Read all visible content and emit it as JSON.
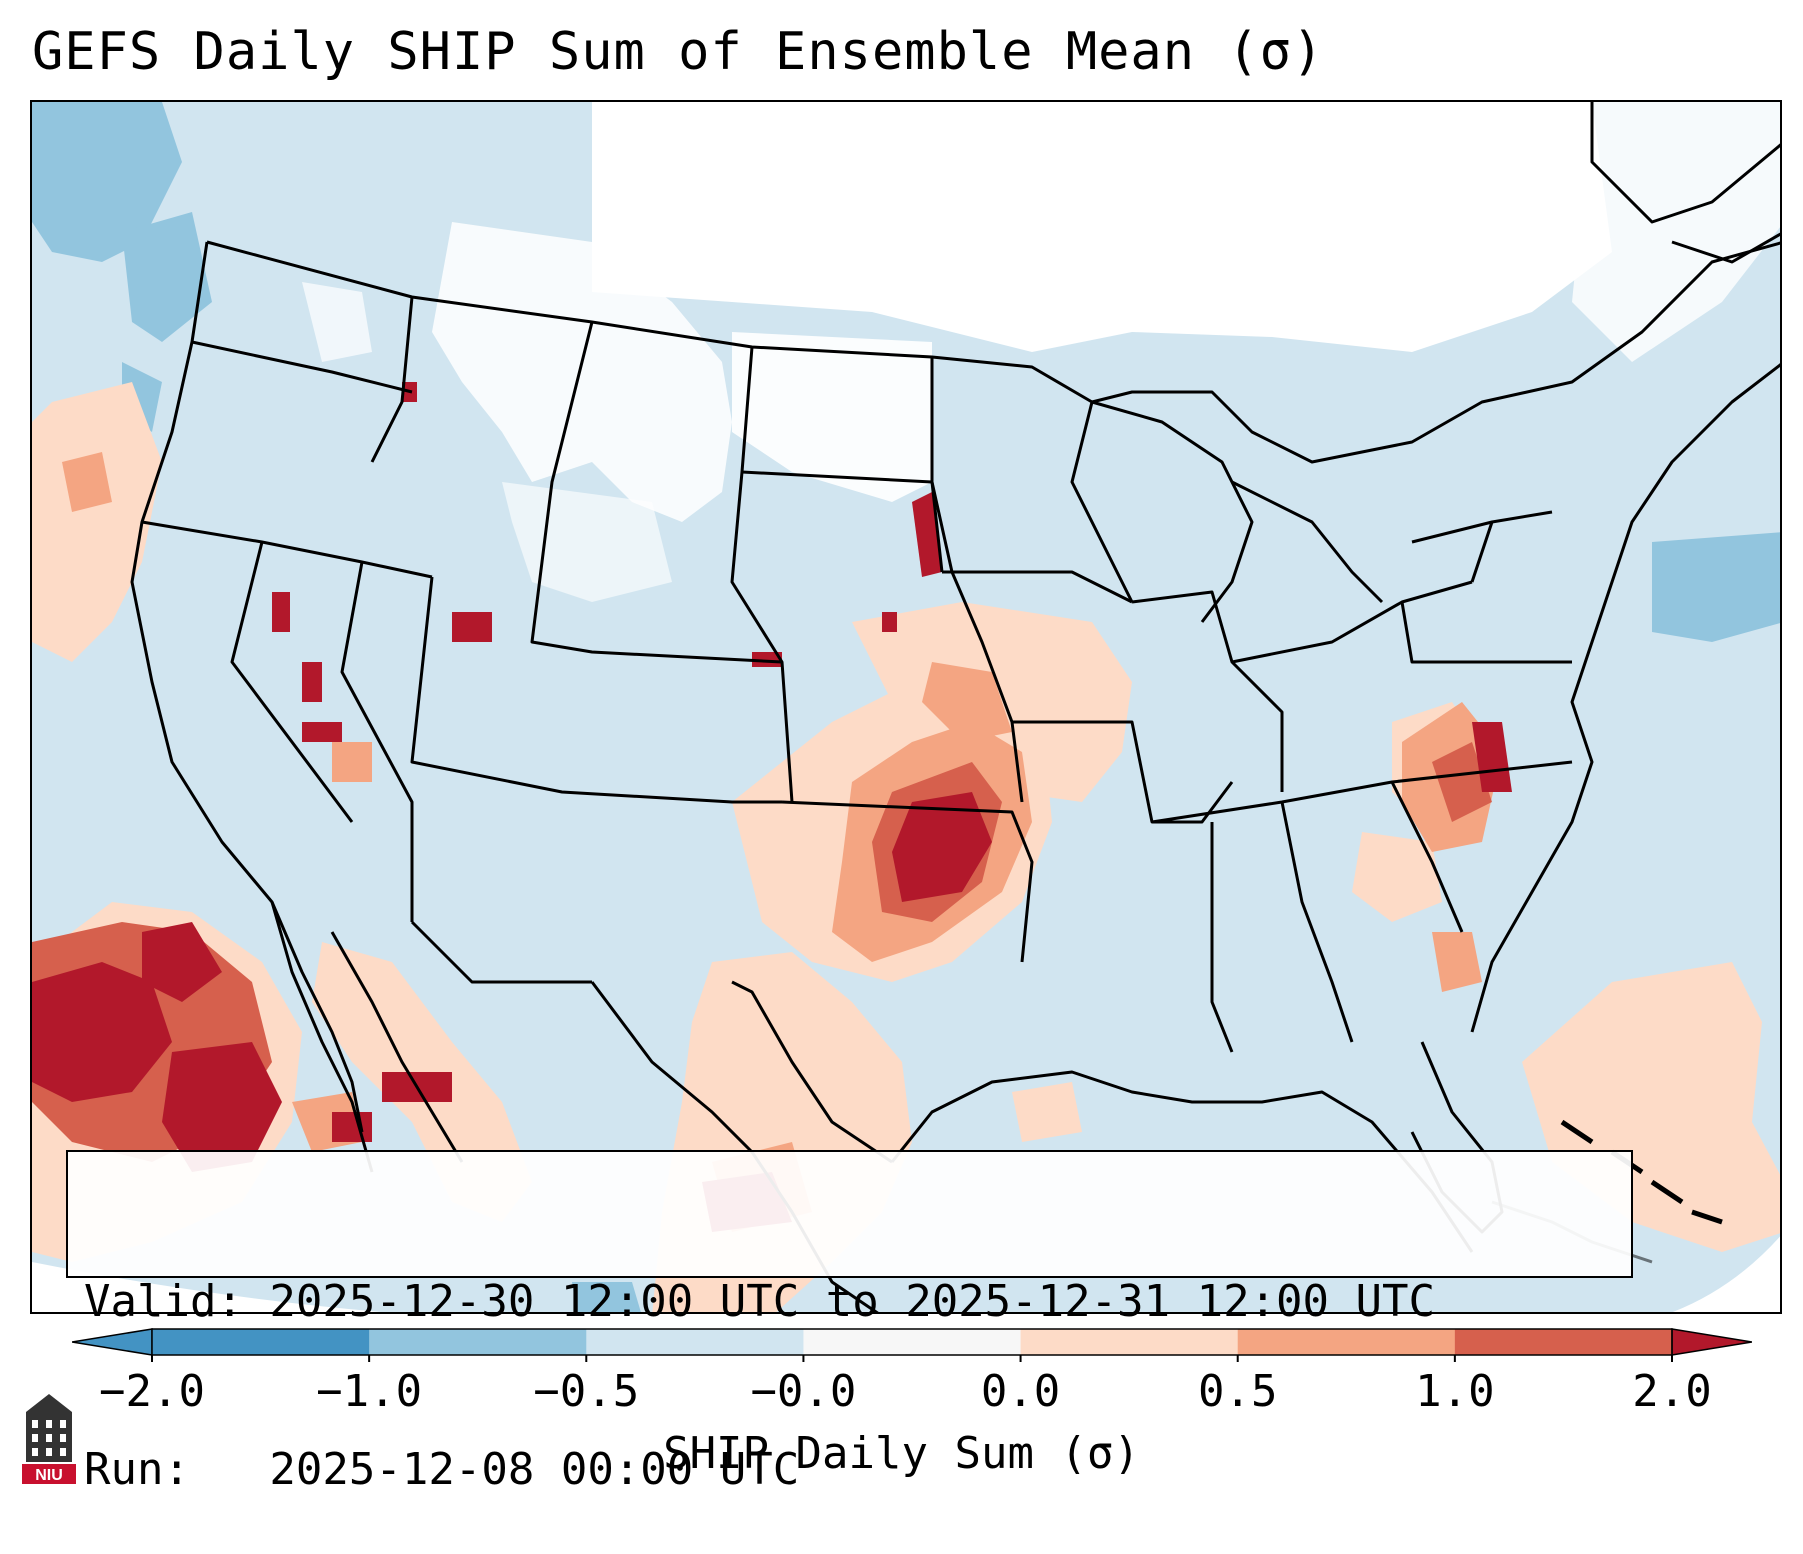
{
  "title": "GEFS Daily SHIP Sum of Ensemble Mean (σ)",
  "info": {
    "valid_line": "Valid: 2025-12-30 12:00 UTC to 2025-12-31 12:00 UTC",
    "run_line": "Run:   2025-12-08 00:00 UTC"
  },
  "colorbar": {
    "label": "SHIP Daily Sum (σ)",
    "ticks": [
      "−2.0",
      "−1.0",
      "−0.5",
      "−0.0",
      "0.0",
      "0.5",
      "1.0",
      "2.0"
    ],
    "colors": [
      "#4393c3",
      "#92c5de",
      "#d1e5f0",
      "#f7f7f7",
      "#fddbc7",
      "#f4a582",
      "#d6604d",
      "#b2182b"
    ],
    "extend": "both"
  },
  "map": {
    "region": "CONUS",
    "field": "SHIP daily sum, ensemble mean",
    "background_color": "#d1e5f0"
  },
  "logo": {
    "text": "NIU",
    "icon": "university-tower-icon"
  }
}
